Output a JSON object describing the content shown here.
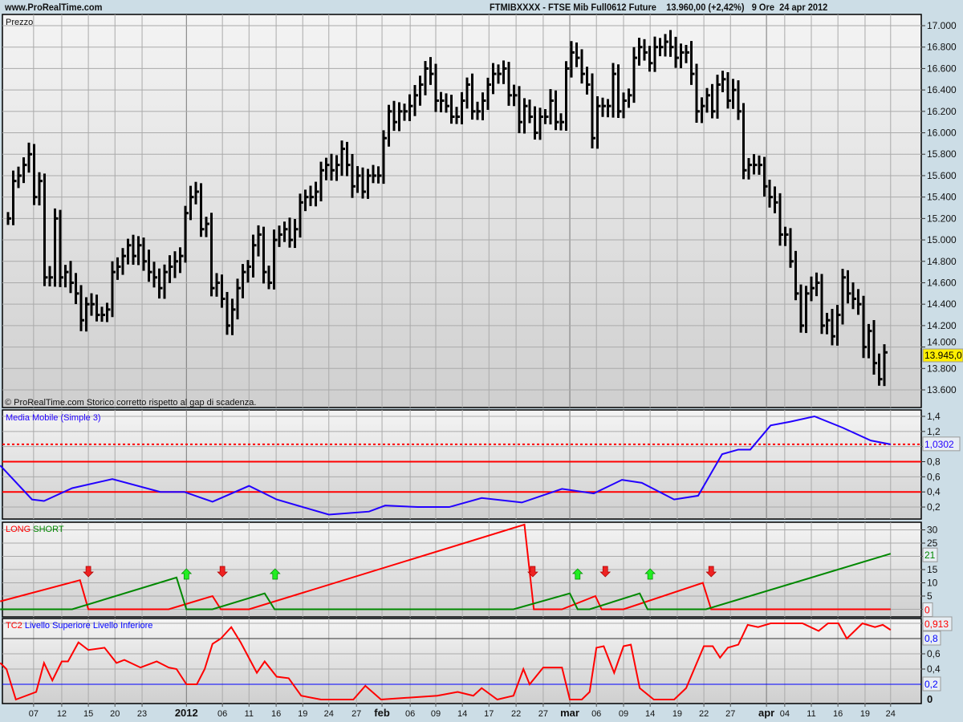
{
  "header": {
    "site": "www.ProRealTime.com",
    "instrument": "FTMIBXXXX - FTSE Mib Full0612 Future",
    "last": "13.960,00 (+2,42%)",
    "timeframe": "9 Ore",
    "date": "24 apr 2012"
  },
  "chart_data": [
    {
      "type": "ohlc-bar",
      "title": "Prezzo",
      "footnote": "© ProRealTime.com  Storico corretto rispetto al gap di scadenza.",
      "ylim": [
        13600,
        17000
      ],
      "yticks": [
        "13.600",
        "13.800",
        "14.000",
        "14.200",
        "14.400",
        "14.600",
        "14.800",
        "15.000",
        "15.200",
        "15.400",
        "15.600",
        "15.800",
        "16.000",
        "16.200",
        "16.400",
        "16.600",
        "16.800",
        "17.000"
      ],
      "last_label": "13.945,0",
      "closes": [
        15200,
        15550,
        15600,
        15700,
        15800,
        15400,
        15550,
        14650,
        14650,
        15200,
        14650,
        14700,
        14600,
        14500,
        14250,
        14400,
        14400,
        14300,
        14300,
        14350,
        14700,
        14750,
        14850,
        14950,
        14850,
        14950,
        14800,
        14700,
        14650,
        14550,
        14700,
        14750,
        14800,
        14850,
        15250,
        15400,
        15450,
        15100,
        15150,
        14550,
        14600,
        14450,
        14200,
        14350,
        14550,
        14700,
        14750,
        14950,
        15050,
        14700,
        14600,
        15000,
        15050,
        15100,
        15000,
        15100,
        15350,
        15400,
        15400,
        15450,
        15650,
        15700,
        15650,
        15700,
        15850,
        15700,
        15500,
        15600,
        15450,
        15600,
        15600,
        15600,
        15950,
        16200,
        16100,
        16200,
        16200,
        16250,
        16350,
        16450,
        16600,
        16550,
        16300,
        16300,
        16250,
        16150,
        16150,
        16300,
        16450,
        16200,
        16200,
        16300,
        16450,
        16550,
        16550,
        16600,
        16350,
        16350,
        16100,
        16250,
        16150,
        16000,
        16150,
        16150,
        16300,
        16100,
        16100,
        16600,
        16750,
        16700,
        16550,
        16450,
        15950,
        16250,
        16250,
        16250,
        16550,
        16200,
        16300,
        16350,
        16700,
        16800,
        16750,
        16650,
        16800,
        16800,
        16850,
        16800,
        16700,
        16750,
        16750,
        16550,
        16200,
        16250,
        16350,
        16200,
        16450,
        16500,
        16300,
        16400,
        16200,
        15650,
        15700,
        15700,
        15700,
        15500,
        15400,
        15350,
        15050,
        15050,
        14800,
        14500,
        14200,
        14500,
        14550,
        14600,
        14200,
        14250,
        14100,
        14300,
        14650,
        14500,
        14450,
        14400,
        14000,
        14150,
        13850,
        13700,
        13950
      ]
    },
    {
      "type": "line",
      "title": "Media Mobile (Simple 3)",
      "ylim": [
        0,
        1.45
      ],
      "yticks": [
        "0,2",
        "0,4",
        "0,6",
        "0,8",
        "1",
        "1,2",
        "1,4"
      ],
      "ytick_values": [
        0.2,
        0.4,
        0.6,
        0.8,
        1.0,
        1.2,
        1.4
      ],
      "levels": [
        0.8,
        0.4
      ],
      "dotted_level": 1.0302,
      "last_label": "1,0302",
      "points": [
        [
          -1.5,
          0.75
        ],
        [
          4.6,
          0.3
        ],
        [
          6.9,
          0.28
        ],
        [
          12.3,
          0.45
        ],
        [
          20,
          0.57
        ],
        [
          29.2,
          0.4
        ],
        [
          33.8,
          0.4
        ],
        [
          39.2,
          0.27
        ],
        [
          46.2,
          0.48
        ],
        [
          51.5,
          0.3
        ],
        [
          61.5,
          0.1
        ],
        [
          69.2,
          0.14
        ],
        [
          72.3,
          0.22
        ],
        [
          78.5,
          0.2
        ],
        [
          84.6,
          0.2
        ],
        [
          90.8,
          0.32
        ],
        [
          98.5,
          0.26
        ],
        [
          106.2,
          0.44
        ],
        [
          112.3,
          0.38
        ],
        [
          117.7,
          0.56
        ],
        [
          121.5,
          0.52
        ],
        [
          127.7,
          0.3
        ],
        [
          132.3,
          0.35
        ],
        [
          136.9,
          0.9
        ],
        [
          140,
          0.96
        ],
        [
          142.3,
          0.96
        ],
        [
          146.2,
          1.28
        ],
        [
          150,
          1.33
        ],
        [
          154.6,
          1.4
        ],
        [
          160,
          1.25
        ],
        [
          165.4,
          1.08
        ],
        [
          169.2,
          1.03
        ]
      ]
    },
    {
      "type": "line",
      "title_long": "LONG",
      "title_short": "SHORT",
      "ylim": [
        0,
        32
      ],
      "yticks": [
        "5",
        "10",
        "15",
        "25",
        "30"
      ],
      "ytick_values": [
        5,
        10,
        15,
        25,
        30
      ],
      "last_long": "0",
      "last_short": "21",
      "long": [
        [
          -1.5,
          3
        ],
        [
          13.8,
          11
        ],
        [
          15.4,
          0
        ],
        [
          30.8,
          0
        ],
        [
          39.2,
          5
        ],
        [
          40.8,
          0
        ],
        [
          46.2,
          0
        ],
        [
          99,
          32
        ],
        [
          100.8,
          0
        ],
        [
          106.2,
          0
        ],
        [
          112.6,
          5
        ],
        [
          113.8,
          0
        ],
        [
          118,
          0
        ],
        [
          133.2,
          10
        ],
        [
          134.8,
          0
        ],
        [
          169.2,
          0
        ]
      ],
      "short": [
        [
          -1.5,
          0
        ],
        [
          12.3,
          0
        ],
        [
          32.3,
          12
        ],
        [
          34.2,
          0
        ],
        [
          39.2,
          0
        ],
        [
          49.2,
          6
        ],
        [
          51.1,
          0
        ],
        [
          96.9,
          0
        ],
        [
          107.7,
          6
        ],
        [
          109.2,
          0
        ],
        [
          111.5,
          0
        ],
        [
          121.1,
          6
        ],
        [
          122.6,
          0
        ],
        [
          133.8,
          0
        ],
        [
          169.2,
          21
        ]
      ],
      "signals": [
        [
          15.4,
          "down"
        ],
        [
          34.2,
          "up"
        ],
        [
          41.1,
          "down"
        ],
        [
          51.2,
          "up"
        ],
        [
          100.6,
          "down"
        ],
        [
          109.2,
          "up"
        ],
        [
          114.5,
          "down"
        ],
        [
          123.1,
          "up"
        ],
        [
          134.8,
          "down"
        ]
      ]
    },
    {
      "type": "line",
      "title_red": "TC2",
      "title_blue": "Livello Superiore Livello Inferiore",
      "ylim": [
        0,
        1
      ],
      "yticks": [
        "0",
        "0,4",
        "0,6"
      ],
      "ytick_values": [
        0,
        0.4,
        0.6
      ],
      "upper": 0.8,
      "lower": 0.2,
      "upper_label": "0,8",
      "lower_label": "0,2",
      "last_label": "0,913",
      "points": [
        [
          -1.5,
          0.48
        ],
        [
          -0.3,
          0.4
        ],
        [
          1.5,
          0
        ],
        [
          5.4,
          0.1
        ],
        [
          6.9,
          0.48
        ],
        [
          8.5,
          0.25
        ],
        [
          10.3,
          0.5
        ],
        [
          11.5,
          0.5
        ],
        [
          13.5,
          0.75
        ],
        [
          15.4,
          0.65
        ],
        [
          18.5,
          0.68
        ],
        [
          20.8,
          0.48
        ],
        [
          22.3,
          0.52
        ],
        [
          25.4,
          0.42
        ],
        [
          28.5,
          0.5
        ],
        [
          30.8,
          0.42
        ],
        [
          32.3,
          0.4
        ],
        [
          34.2,
          0.2
        ],
        [
          36.2,
          0.2
        ],
        [
          37.7,
          0.4
        ],
        [
          39.2,
          0.73
        ],
        [
          40.8,
          0.8
        ],
        [
          42.8,
          0.95
        ],
        [
          44.6,
          0.75
        ],
        [
          47.7,
          0.35
        ],
        [
          49.2,
          0.5
        ],
        [
          51.5,
          0.3
        ],
        [
          53.8,
          0.28
        ],
        [
          56.2,
          0.05
        ],
        [
          60,
          0
        ],
        [
          66.2,
          0
        ],
        [
          68.5,
          0.18
        ],
        [
          71.5,
          0
        ],
        [
          82.3,
          0.05
        ],
        [
          86.2,
          0.1
        ],
        [
          89.2,
          0.05
        ],
        [
          90.8,
          0.15
        ],
        [
          93.8,
          0
        ],
        [
          96.9,
          0.05
        ],
        [
          98.8,
          0.4
        ],
        [
          100,
          0.2
        ],
        [
          102.6,
          0.42
        ],
        [
          106.2,
          0.42
        ],
        [
          107.7,
          0
        ],
        [
          110,
          0
        ],
        [
          111.5,
          0.1
        ],
        [
          112.8,
          0.68
        ],
        [
          114.2,
          0.7
        ],
        [
          116.2,
          0.35
        ],
        [
          118,
          0.7
        ],
        [
          119.4,
          0.72
        ],
        [
          121.1,
          0.15
        ],
        [
          123.8,
          0
        ],
        [
          127.7,
          0
        ],
        [
          130,
          0.15
        ],
        [
          133.4,
          0.7
        ],
        [
          135.1,
          0.7
        ],
        [
          136.5,
          0.55
        ],
        [
          138,
          0.68
        ],
        [
          140,
          0.72
        ],
        [
          141.8,
          0.98
        ],
        [
          143.8,
          0.95
        ],
        [
          146.2,
          1
        ],
        [
          152.3,
          1
        ],
        [
          155.4,
          0.9
        ],
        [
          157.2,
          1
        ],
        [
          159.2,
          1
        ],
        [
          160.8,
          0.8
        ],
        [
          163.8,
          1
        ],
        [
          166.2,
          0.95
        ],
        [
          167.7,
          0.98
        ],
        [
          169.2,
          0.913
        ]
      ]
    }
  ],
  "xaxis": {
    "labels": [
      [
        "07",
        4.9
      ],
      [
        "12",
        10.3
      ],
      [
        "15",
        15.4
      ],
      [
        "20",
        20.5
      ],
      [
        "23",
        25.7
      ],
      [
        "2012",
        34.2
      ],
      [
        "06",
        41.1
      ],
      [
        "11",
        46.2
      ],
      [
        "16",
        51.4
      ],
      [
        "19",
        56.5
      ],
      [
        "24",
        61.5
      ],
      [
        "27",
        66.8
      ],
      [
        "feb",
        71.7
      ],
      [
        "06",
        77.1
      ],
      [
        "09",
        82
      ],
      [
        "14",
        87.1
      ],
      [
        "17",
        92.2
      ],
      [
        "22",
        97.4
      ],
      [
        "27",
        102.6
      ],
      [
        "mar",
        107.7
      ],
      [
        "06",
        112.8
      ],
      [
        "09",
        118
      ],
      [
        "14",
        123.1
      ],
      [
        "19",
        128.3
      ],
      [
        "22",
        133.4
      ],
      [
        "27",
        138.5
      ],
      [
        "apr",
        145.4
      ],
      [
        "04",
        148.9
      ],
      [
        "11",
        154
      ],
      [
        "16",
        159.1
      ],
      [
        "19",
        164.3
      ],
      [
        "24",
        169.2
      ]
    ],
    "bold": [
      "2012",
      "feb",
      "mar",
      "apr"
    ]
  },
  "colors": {
    "bg": "#ccdde6",
    "long": "#ff0000",
    "short": "#008800",
    "ma": "#2200ff",
    "tc2": "#ff0000",
    "lastbox": "#ffee00"
  }
}
